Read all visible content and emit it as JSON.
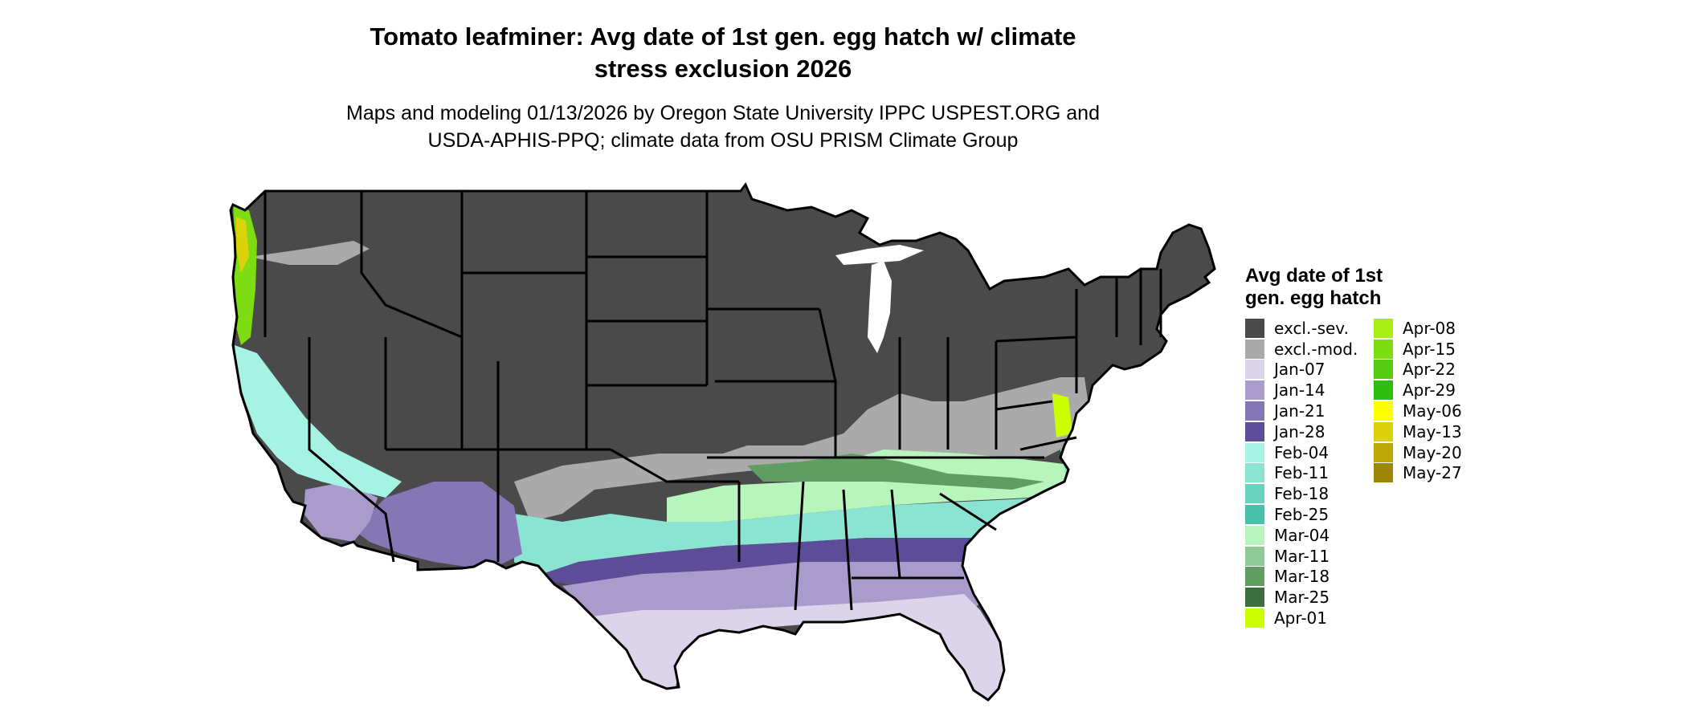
{
  "title_line1": "Tomato leafminer: Avg date of 1st gen. egg hatch w/ climate",
  "title_line2": "stress exclusion 2026",
  "subtitle_line1": "Maps and modeling 01/13/2026 by Oregon State University IPPC USPEST.ORG and",
  "subtitle_line2": "USDA-APHIS-PPQ; climate data from OSU PRISM Climate Group",
  "legend": {
    "title_line1": "Avg date of 1st",
    "title_line2": "gen. egg hatch",
    "items": [
      {
        "label": "excl.-sev.",
        "color": "#4a4a4a"
      },
      {
        "label": "excl.-mod.",
        "color": "#aaaaaa"
      },
      {
        "label": "Jan-07",
        "color": "#dcd4ea"
      },
      {
        "label": "Jan-14",
        "color": "#a99bcb"
      },
      {
        "label": "Jan-21",
        "color": "#8577b5"
      },
      {
        "label": "Jan-28",
        "color": "#5d4c97"
      },
      {
        "label": "Feb-04",
        "color": "#a6f2e3"
      },
      {
        "label": "Feb-11",
        "color": "#8be4d2"
      },
      {
        "label": "Feb-18",
        "color": "#6ad1bf"
      },
      {
        "label": "Feb-25",
        "color": "#48c1aa"
      },
      {
        "label": "Mar-04",
        "color": "#b7f5bd"
      },
      {
        "label": "Mar-11",
        "color": "#8fcb96"
      },
      {
        "label": "Mar-18",
        "color": "#5f9d63"
      },
      {
        "label": "Mar-25",
        "color": "#3a6e3c"
      },
      {
        "label": "Apr-01",
        "color": "#ccff00"
      },
      {
        "label": "Apr-08",
        "color": "#a6ee14"
      },
      {
        "label": "Apr-15",
        "color": "#7ddc12"
      },
      {
        "label": "Apr-22",
        "color": "#56cc10"
      },
      {
        "label": "Apr-29",
        "color": "#2fbd0e"
      },
      {
        "label": "May-06",
        "color": "#ffff00"
      },
      {
        "label": "May-13",
        "color": "#dcd20a"
      },
      {
        "label": "May-20",
        "color": "#bca808"
      },
      {
        "label": "May-27",
        "color": "#9c8606"
      }
    ]
  }
}
